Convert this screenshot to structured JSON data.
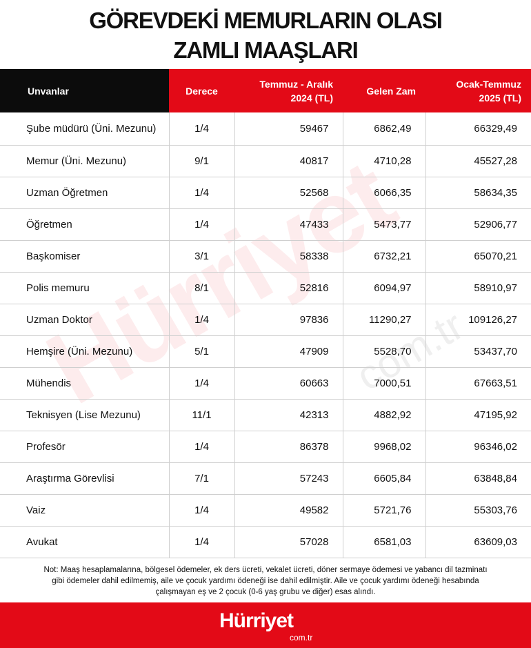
{
  "header": {
    "title": [
      "GÖREVDEKİ MEMURLARIN OLASI",
      "ZAMLI MAAŞLARI"
    ]
  },
  "table": {
    "columns": [
      [
        "Unvanlar"
      ],
      [
        "Derece"
      ],
      [
        "Temmuz - Aralık",
        "2024 (TL)"
      ],
      [
        "Gelen Zam"
      ],
      [
        "Ocak-Temmuz",
        "2025 (TL)"
      ]
    ],
    "rows": [
      [
        "Şube müdürü (Üni. Mezunu)",
        "1/4",
        "59467",
        "6862,49",
        "66329,49"
      ],
      [
        "Memur (Üni. Mezunu)",
        "9/1",
        "40817",
        "4710,28",
        "45527,28"
      ],
      [
        "Uzman Öğretmen",
        "1/4",
        "52568",
        "6066,35",
        "58634,35"
      ],
      [
        "Öğretmen",
        "1/4",
        "47433",
        "5473,77",
        "52906,77"
      ],
      [
        "Başkomiser",
        "3/1",
        "58338",
        "6732,21",
        "65070,21"
      ],
      [
        "Polis memuru",
        "8/1",
        "52816",
        "6094,97",
        "58910,97"
      ],
      [
        "Uzman Doktor",
        "1/4",
        "97836",
        "11290,27",
        "109126,27"
      ],
      [
        "Hemşire (Üni. Mezunu)",
        "5/1",
        "47909",
        "5528,70",
        "53437,70"
      ],
      [
        "Mühendis",
        "1/4",
        "60663",
        "7000,51",
        "67663,51"
      ],
      [
        "Teknisyen (Lise Mezunu)",
        "11/1",
        "42313",
        "4882,92",
        "47195,92"
      ],
      [
        "Profesör",
        "1/4",
        "86378",
        "9968,02",
        "96346,02"
      ],
      [
        "Araştırma Görevlisi",
        "7/1",
        "57243",
        "6605,84",
        "63848,84"
      ],
      [
        "Vaiz",
        "1/4",
        "49582",
        "5721,76",
        "55303,76"
      ],
      [
        "Avukat",
        "1/4",
        "57028",
        "6581,03",
        "63609,03"
      ]
    ]
  },
  "note": "Not: Maaş hesaplamalarına, bölgesel ödemeler, ek ders ücreti, vekalet ücreti, döner sermaye ödemesi ve yabancı dil tazminatı gibi ödemeler dahil edilmemiş, aile ve çocuk yardımı ödeneği ise dahil edilmiştir. Aile ve çocuk yardımı ödeneği hesabında çalışmayan eş ve 2 çocuk (0-6 yaş grubu ve diğer) esas alındı.",
  "brand": {
    "name": "Hürriyet",
    "domain": "com.tr"
  }
}
